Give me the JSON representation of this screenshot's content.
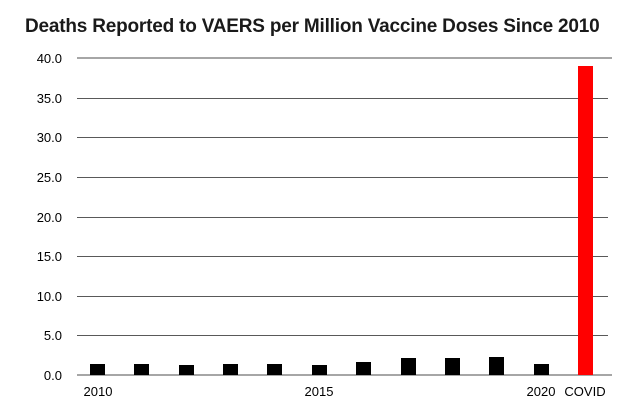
{
  "title": "Deaths Reported to VAERS per Million Vaccine Doses Since 2010",
  "colors": {
    "background": "#ffffff",
    "title_text": "#1a1a1a",
    "bar_default": "#000000",
    "bar_highlight": "#ff0000",
    "inner_gridline": "#595959",
    "boundary_line": "#a6a6a6",
    "tick_text": "#000000"
  },
  "chart_data": {
    "type": "bar",
    "title": "Deaths Reported to VAERS per Million Vaccine Doses Since 2010",
    "xlabel": "",
    "ylabel": "",
    "categories": [
      "2010",
      "2011",
      "2012",
      "2013",
      "2014",
      "2015",
      "2016",
      "2017",
      "2018",
      "2019",
      "2020",
      "COVID"
    ],
    "values": [
      1.4,
      1.4,
      1.3,
      1.4,
      1.4,
      1.3,
      1.7,
      2.1,
      2.1,
      2.3,
      1.4,
      39.0
    ],
    "highlight_category": "COVID",
    "highlight_index": 11,
    "ylim": [
      0,
      40
    ],
    "ytick_step": 5,
    "ytick_labels": [
      "0.0",
      "5.0",
      "10.0",
      "15.0",
      "20.0",
      "25.0",
      "30.0",
      "35.0",
      "40.0"
    ],
    "xtick_shown": [
      "2010",
      "2015",
      "2020",
      "COVID"
    ],
    "grid": "horizontal",
    "legend": "none"
  }
}
